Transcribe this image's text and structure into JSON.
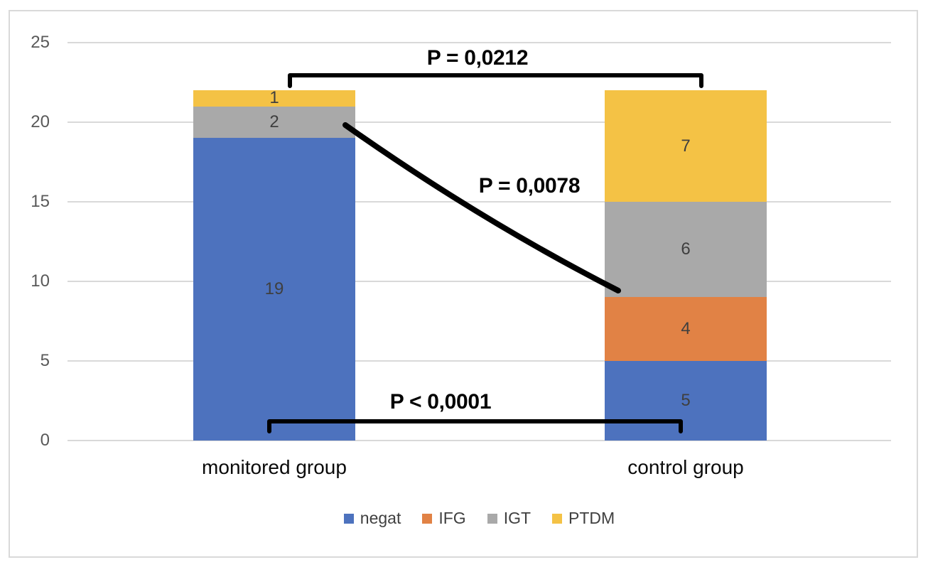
{
  "chart_data": {
    "type": "bar",
    "stacked": true,
    "categories": [
      "monitored group",
      "control group"
    ],
    "series": [
      {
        "name": "negat",
        "color": "#4D72BE",
        "values": [
          19,
          5
        ]
      },
      {
        "name": "IFG",
        "color": "#E18245",
        "values": [
          0,
          4
        ]
      },
      {
        "name": "IGT",
        "color": "#A9A9A9",
        "values": [
          2,
          6
        ]
      },
      {
        "name": "PTDM",
        "color": "#F4C245",
        "values": [
          1,
          7
        ]
      }
    ],
    "totals": [
      22,
      22
    ],
    "ylim": [
      0,
      25
    ],
    "yticks": [
      0,
      5,
      10,
      15,
      20,
      25
    ],
    "grid": true,
    "legend_position": "bottom",
    "annotations": [
      {
        "id": "top-bracket",
        "shape": "bracket",
        "label": "P = 0,0212",
        "x1": 408,
        "x2": 987,
        "y": 106,
        "tick": 15,
        "label_x": 672,
        "label_y": 82
      },
      {
        "id": "igt-line",
        "shape": "line",
        "label": "P = 0,0078",
        "x1": 486,
        "y1": 176,
        "x2": 870,
        "y2": 409,
        "bend_x": 676,
        "bend_y": 310,
        "label_x": 745,
        "label_y": 262
      },
      {
        "id": "bottom-bracket",
        "shape": "bracket",
        "label": "P < 0,0001",
        "x1": 379,
        "x2": 958,
        "y": 593,
        "tick": 14,
        "label_x": 620,
        "label_y": 566
      }
    ]
  },
  "styles": {
    "grid_color": "#D9D9D9",
    "frame_border_color": "#D9D9D9",
    "tick_label_color": "#595959",
    "value_label_color": "#3F3F3F",
    "category_label_color": "#0A0A0A",
    "legend_label_color": "#404040",
    "annotation_color": "#000000"
  }
}
